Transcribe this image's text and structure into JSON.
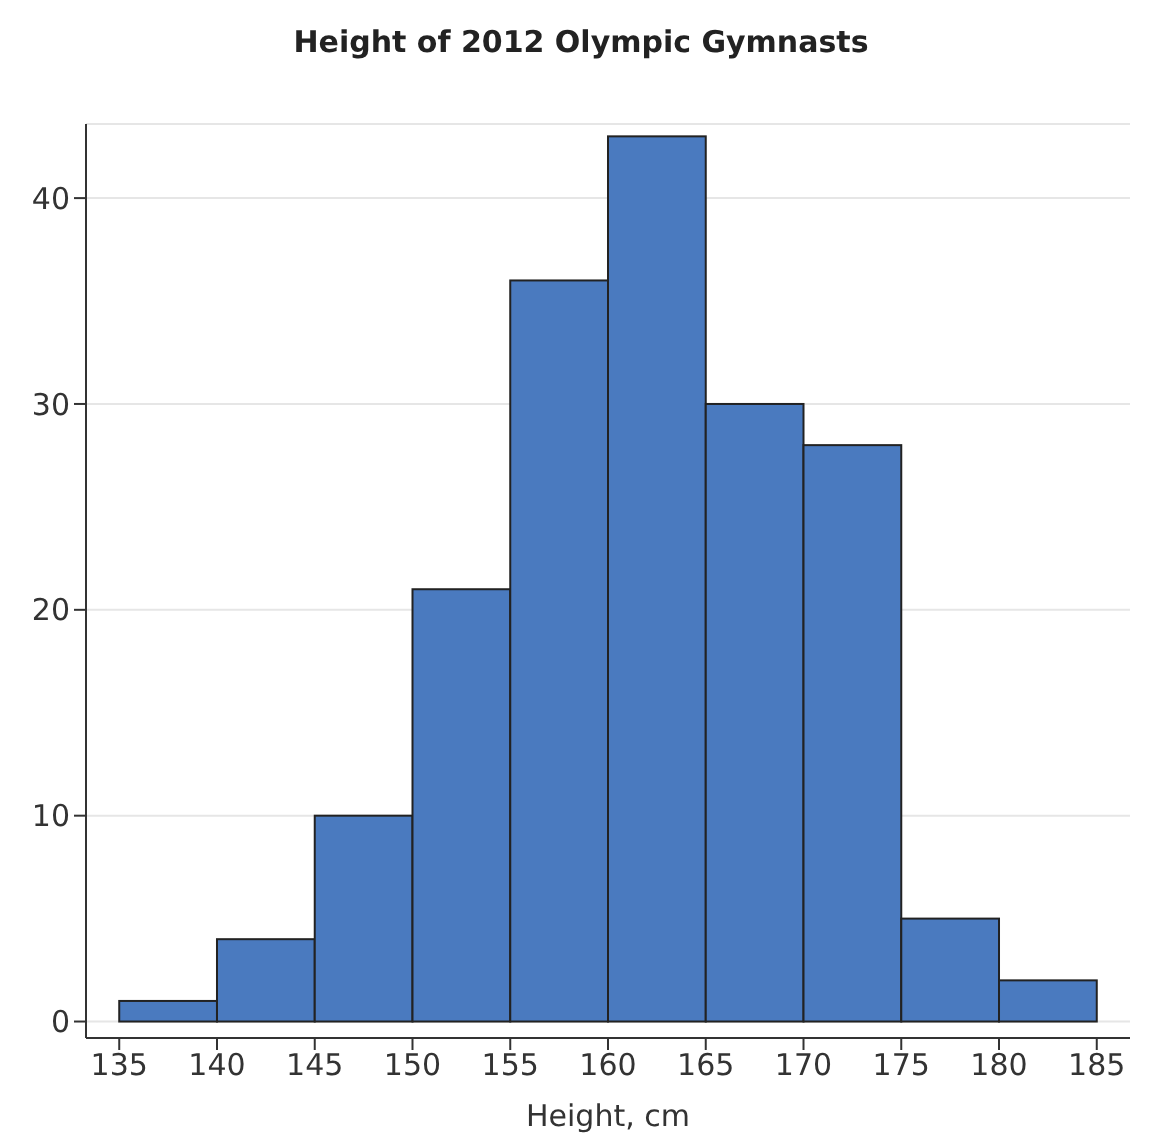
{
  "chart_data": {
    "type": "histogram",
    "title": "Height of 2012 Olympic Gymnasts",
    "xlabel": "Height, cm",
    "bins": [
      135,
      140,
      145,
      150,
      155,
      160,
      165,
      170,
      175,
      180,
      185
    ],
    "values": [
      1,
      4,
      10,
      21,
      36,
      43,
      30,
      28,
      5,
      2
    ],
    "color": "#4a7abf",
    "xlim": [
      133.3,
      186.7
    ],
    "xticks": [
      135,
      140,
      145,
      150,
      155,
      160,
      165,
      170,
      175,
      180,
      185
    ],
    "ylim": [
      -0.8,
      43.6
    ],
    "yticks": [
      0,
      10,
      20,
      30,
      40
    ],
    "grid": "y"
  }
}
